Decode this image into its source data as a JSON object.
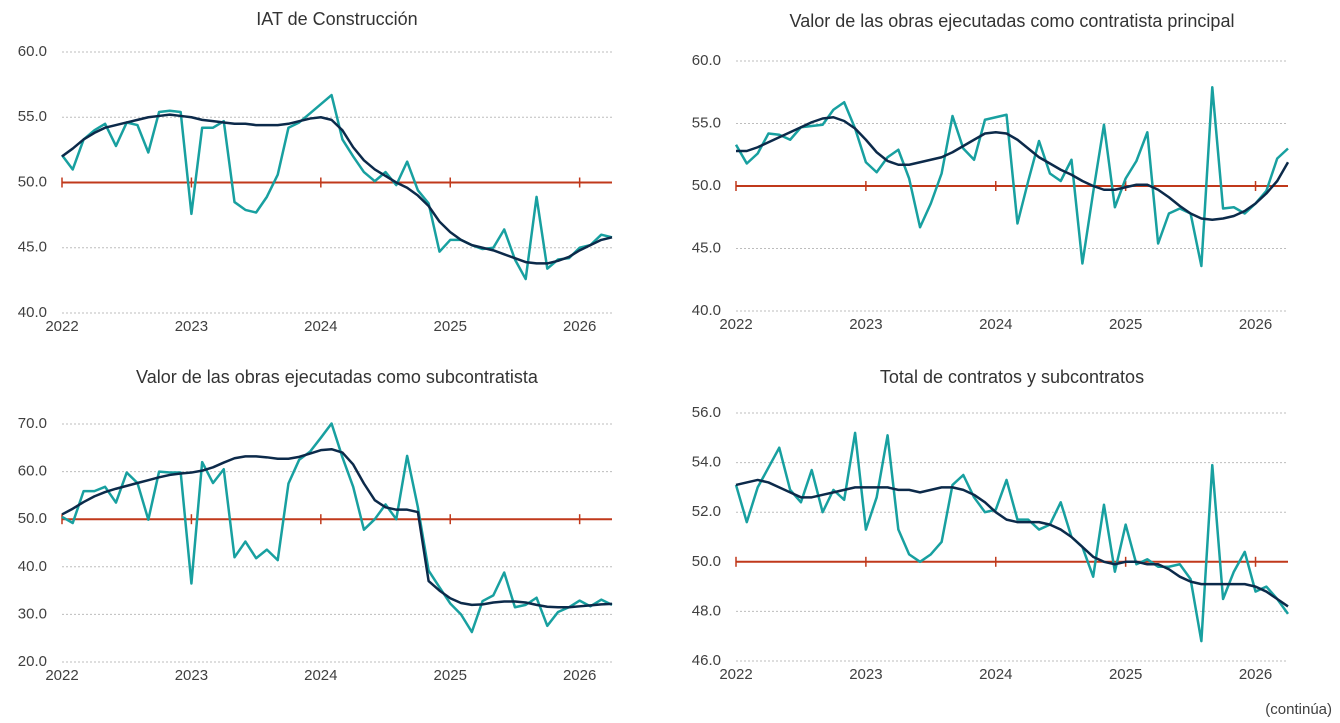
{
  "chart_data": [
    {
      "type": "line",
      "title": "IAT de Construcción",
      "x": [
        2022,
        2022.083,
        2022.167,
        2022.25,
        2022.333,
        2022.417,
        2022.5,
        2022.583,
        2022.667,
        2022.75,
        2022.833,
        2022.917,
        2023,
        2023.083,
        2023.167,
        2023.25,
        2023.333,
        2023.417,
        2023.5,
        2023.583,
        2023.667,
        2023.75,
        2023.833,
        2023.917,
        2024,
        2024.083,
        2024.167,
        2024.25,
        2024.333,
        2024.417,
        2024.5,
        2024.583,
        2024.667,
        2024.75,
        2024.833,
        2024.917,
        2025,
        2025.083,
        2025.167,
        2025.25,
        2025.333,
        2025.417,
        2025.5,
        2025.583,
        2025.667,
        2025.75,
        2025.833,
        2025.917,
        2026,
        2026.083,
        2026.167,
        2026.25
      ],
      "xlim": [
        2022,
        2026.25
      ],
      "xticks": [
        2022,
        2023,
        2024,
        2025,
        2026
      ],
      "ylim": [
        40,
        60
      ],
      "yticks": [
        {
          "value": 40,
          "label": "40.0"
        },
        {
          "value": 45,
          "label": "45.0"
        },
        {
          "value": 50,
          "label": "50.0"
        },
        {
          "value": 55,
          "label": "55.0"
        },
        {
          "value": 60,
          "label": "60.0"
        }
      ],
      "grid": true,
      "reference_line": 50,
      "reference_color": "#c0391b",
      "series": [
        {
          "color": "#18a0a0",
          "values": [
            52.1,
            51.0,
            53.3,
            54.0,
            54.5,
            52.8,
            54.6,
            54.4,
            52.3,
            55.4,
            55.5,
            55.4,
            47.6,
            54.2,
            54.2,
            54.7,
            48.5,
            47.9,
            47.7,
            48.9,
            50.6,
            54.2,
            54.6,
            55.3,
            56.0,
            56.7,
            53.3,
            52.0,
            50.8,
            50.1,
            50.8,
            49.8,
            51.6,
            49.4,
            48.4,
            44.7,
            45.6,
            45.6,
            45.2,
            44.9,
            45.0,
            46.4,
            44.1,
            42.6,
            48.9,
            43.4,
            44.1,
            44.2,
            45.0,
            45.2,
            46.0,
            45.8
          ]
        },
        {
          "color": "#0c2a4a",
          "values": [
            52.0,
            52.6,
            53.3,
            53.8,
            54.2,
            54.4,
            54.6,
            54.8,
            55.0,
            55.1,
            55.2,
            55.1,
            55.0,
            54.8,
            54.7,
            54.6,
            54.5,
            54.5,
            54.4,
            54.4,
            54.4,
            54.5,
            54.7,
            54.9,
            55.0,
            54.8,
            54.0,
            52.7,
            51.7,
            51.0,
            50.5,
            50.0,
            49.6,
            49.0,
            48.2,
            47.0,
            46.2,
            45.6,
            45.2,
            45.0,
            44.8,
            44.5,
            44.2,
            43.9,
            43.8,
            43.8,
            44.0,
            44.3,
            44.8,
            45.2,
            45.6,
            45.8
          ]
        }
      ]
    },
    {
      "type": "line",
      "title": "Valor de las obras ejecutadas como contratista principal",
      "x": [
        2022,
        2022.083,
        2022.167,
        2022.25,
        2022.333,
        2022.417,
        2022.5,
        2022.583,
        2022.667,
        2022.75,
        2022.833,
        2022.917,
        2023,
        2023.083,
        2023.167,
        2023.25,
        2023.333,
        2023.417,
        2023.5,
        2023.583,
        2023.667,
        2023.75,
        2023.833,
        2023.917,
        2024,
        2024.083,
        2024.167,
        2024.25,
        2024.333,
        2024.417,
        2024.5,
        2024.583,
        2024.667,
        2024.75,
        2024.833,
        2024.917,
        2025,
        2025.083,
        2025.167,
        2025.25,
        2025.333,
        2025.417,
        2025.5,
        2025.583,
        2025.667,
        2025.75,
        2025.833,
        2025.917,
        2026,
        2026.083,
        2026.167,
        2026.25
      ],
      "xlim": [
        2022,
        2026.25
      ],
      "xticks": [
        2022,
        2023,
        2024,
        2025,
        2026
      ],
      "ylim": [
        40,
        60
      ],
      "yticks": [
        {
          "value": 40,
          "label": "40.0"
        },
        {
          "value": 45,
          "label": "45.0"
        },
        {
          "value": 50,
          "label": "50.0"
        },
        {
          "value": 55,
          "label": "55.0"
        },
        {
          "value": 60,
          "label": "60.0"
        }
      ],
      "grid": true,
      "reference_line": 50,
      "reference_color": "#c0391b",
      "series": [
        {
          "color": "#18a0a0",
          "values": [
            53.3,
            51.8,
            52.6,
            54.2,
            54.1,
            53.7,
            54.7,
            54.8,
            54.9,
            56.1,
            56.7,
            54.6,
            51.9,
            51.1,
            52.3,
            52.9,
            50.6,
            46.7,
            48.6,
            51.0,
            55.6,
            53.0,
            52.1,
            55.3,
            55.5,
            55.7,
            47.0,
            50.4,
            53.6,
            51.0,
            50.4,
            52.1,
            43.8,
            49.5,
            54.9,
            48.3,
            50.6,
            52.0,
            54.3,
            45.4,
            47.8,
            48.2,
            47.8,
            43.6,
            57.9,
            48.2,
            48.3,
            47.8,
            48.6,
            49.6,
            52.2,
            53.0
          ]
        },
        {
          "color": "#0c2a4a",
          "values": [
            52.8,
            52.8,
            53.1,
            53.5,
            53.9,
            54.3,
            54.7,
            55.1,
            55.4,
            55.5,
            55.2,
            54.6,
            53.7,
            52.7,
            52.0,
            51.7,
            51.7,
            51.9,
            52.1,
            52.3,
            52.7,
            53.2,
            53.7,
            54.2,
            54.3,
            54.2,
            53.7,
            53.0,
            52.3,
            51.8,
            51.3,
            50.9,
            50.4,
            50.0,
            49.7,
            49.7,
            49.9,
            50.1,
            50.1,
            49.7,
            49.1,
            48.4,
            47.8,
            47.4,
            47.3,
            47.4,
            47.6,
            48.0,
            48.6,
            49.4,
            50.4,
            51.9
          ]
        }
      ]
    },
    {
      "type": "line",
      "title": "Valor de las obras ejecutadas como subcontratista",
      "x": [
        2022,
        2022.083,
        2022.167,
        2022.25,
        2022.333,
        2022.417,
        2022.5,
        2022.583,
        2022.667,
        2022.75,
        2022.833,
        2022.917,
        2023,
        2023.083,
        2023.167,
        2023.25,
        2023.333,
        2023.417,
        2023.5,
        2023.583,
        2023.667,
        2023.75,
        2023.833,
        2023.917,
        2024,
        2024.083,
        2024.167,
        2024.25,
        2024.333,
        2024.417,
        2024.5,
        2024.583,
        2024.667,
        2024.75,
        2024.833,
        2024.917,
        2025,
        2025.083,
        2025.167,
        2025.25,
        2025.333,
        2025.417,
        2025.5,
        2025.583,
        2025.667,
        2025.75,
        2025.833,
        2025.917,
        2026,
        2026.083,
        2026.167,
        2026.25
      ],
      "xlim": [
        2022,
        2026.25
      ],
      "xticks": [
        2022,
        2023,
        2024,
        2025,
        2026
      ],
      "ylim": [
        20,
        70
      ],
      "yticks": [
        {
          "value": 20,
          "label": "20.0"
        },
        {
          "value": 30,
          "label": "30.0"
        },
        {
          "value": 40,
          "label": "40.0"
        },
        {
          "value": 50,
          "label": "50.0"
        },
        {
          "value": 60,
          "label": "60.0"
        },
        {
          "value": 70,
          "label": "70.0"
        }
      ],
      "grid": true,
      "reference_line": 50,
      "reference_color": "#c0391b",
      "series": [
        {
          "color": "#18a0a0",
          "values": [
            50.5,
            49.2,
            55.9,
            55.9,
            56.8,
            53.5,
            59.8,
            57.6,
            49.9,
            60.0,
            59.8,
            59.8,
            36.5,
            62.0,
            57.6,
            60.5,
            42.0,
            45.3,
            41.8,
            43.6,
            41.4,
            57.5,
            62.5,
            64.2,
            67.1,
            70.1,
            63.0,
            56.8,
            47.8,
            50.0,
            53.1,
            50.0,
            63.3,
            52.5,
            39.2,
            35.7,
            32.3,
            30.0,
            26.3,
            32.8,
            34.0,
            38.8,
            31.5,
            32.0,
            33.5,
            27.6,
            30.5,
            31.5,
            32.9,
            31.7,
            33.1,
            32.0
          ]
        },
        {
          "color": "#0c2a4a",
          "values": [
            51.0,
            52.2,
            53.6,
            54.8,
            55.7,
            56.4,
            57.0,
            57.6,
            58.2,
            58.8,
            59.3,
            59.6,
            59.8,
            60.2,
            60.9,
            61.9,
            62.8,
            63.2,
            63.2,
            63.0,
            62.7,
            62.7,
            63.1,
            63.8,
            64.5,
            64.7,
            64.0,
            61.5,
            57.5,
            54.0,
            52.5,
            52.0,
            52.0,
            51.5,
            37.0,
            35.0,
            33.4,
            32.4,
            32.0,
            32.1,
            32.5,
            32.7,
            32.7,
            32.5,
            32.0,
            31.6,
            31.5,
            31.5,
            31.7,
            31.9,
            32.1,
            32.2
          ]
        }
      ]
    },
    {
      "type": "line",
      "title": "Total de contratos y subcontratos",
      "x": [
        2022,
        2022.083,
        2022.167,
        2022.25,
        2022.333,
        2022.417,
        2022.5,
        2022.583,
        2022.667,
        2022.75,
        2022.833,
        2022.917,
        2023,
        2023.083,
        2023.167,
        2023.25,
        2023.333,
        2023.417,
        2023.5,
        2023.583,
        2023.667,
        2023.75,
        2023.833,
        2023.917,
        2024,
        2024.083,
        2024.167,
        2024.25,
        2024.333,
        2024.417,
        2024.5,
        2024.583,
        2024.667,
        2024.75,
        2024.833,
        2024.917,
        2025,
        2025.083,
        2025.167,
        2025.25,
        2025.333,
        2025.417,
        2025.5,
        2025.583,
        2025.667,
        2025.75,
        2025.833,
        2025.917,
        2026,
        2026.083,
        2026.167,
        2026.25
      ],
      "xlim": [
        2022,
        2026.25
      ],
      "xticks": [
        2022,
        2023,
        2024,
        2025,
        2026
      ],
      "ylim": [
        46,
        56
      ],
      "yticks": [
        {
          "value": 46,
          "label": "46.0"
        },
        {
          "value": 48,
          "label": "48.0"
        },
        {
          "value": 50,
          "label": "50.0"
        },
        {
          "value": 52,
          "label": "52.0"
        },
        {
          "value": 54,
          "label": "54.0"
        },
        {
          "value": 56,
          "label": "56.0"
        }
      ],
      "grid": true,
      "reference_line": 50,
      "reference_color": "#c0391b",
      "series": [
        {
          "color": "#18a0a0",
          "values": [
            53.1,
            51.6,
            53.0,
            53.8,
            54.6,
            52.9,
            52.4,
            53.7,
            52.0,
            52.9,
            52.5,
            55.2,
            51.3,
            52.6,
            55.1,
            51.3,
            50.3,
            50.0,
            50.3,
            50.8,
            53.1,
            53.5,
            52.6,
            52.0,
            52.1,
            53.3,
            51.7,
            51.7,
            51.3,
            51.5,
            52.4,
            51.0,
            50.6,
            49.4,
            52.3,
            49.6,
            51.5,
            49.9,
            50.1,
            49.8,
            49.8,
            49.9,
            49.3,
            46.8,
            53.9,
            48.5,
            49.6,
            50.4,
            48.8,
            49.0,
            48.5,
            47.9
          ]
        },
        {
          "color": "#0c2a4a",
          "values": [
            53.1,
            53.2,
            53.3,
            53.2,
            53.0,
            52.8,
            52.6,
            52.6,
            52.7,
            52.8,
            52.9,
            53.0,
            53.0,
            53.0,
            53.0,
            52.9,
            52.9,
            52.8,
            52.9,
            53.0,
            53.0,
            52.9,
            52.7,
            52.4,
            52.0,
            51.7,
            51.6,
            51.6,
            51.6,
            51.5,
            51.3,
            51.0,
            50.6,
            50.2,
            50.0,
            49.9,
            50.0,
            50.0,
            49.9,
            49.9,
            49.7,
            49.4,
            49.2,
            49.1,
            49.1,
            49.1,
            49.1,
            49.1,
            49.0,
            48.8,
            48.5,
            48.2
          ]
        }
      ]
    }
  ],
  "footer": "(continúa)"
}
